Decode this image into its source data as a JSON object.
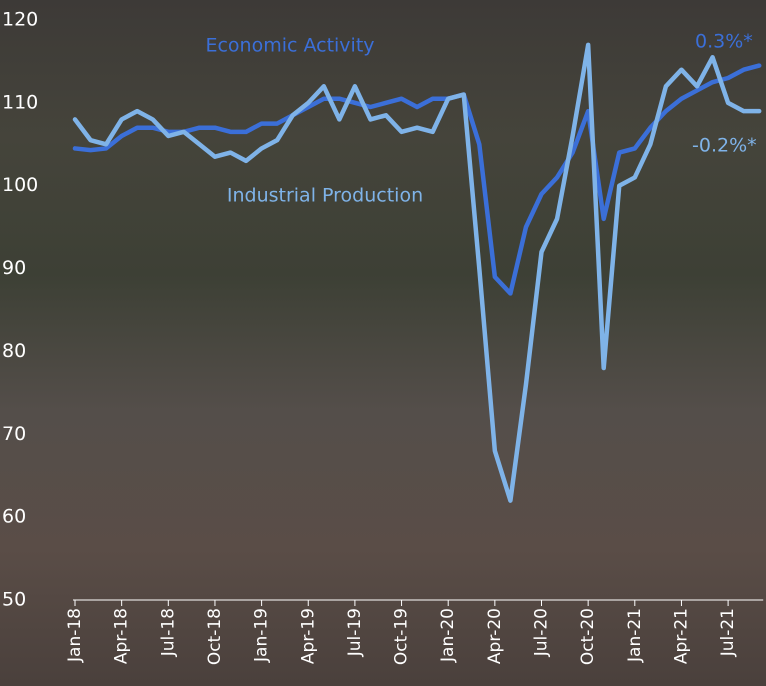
{
  "chart_data": {
    "type": "line",
    "categories": [
      "Jan-18",
      null,
      null,
      "Apr-18",
      null,
      null,
      "Jul-18",
      null,
      null,
      "Oct-18",
      null,
      null,
      "Jan-19",
      null,
      null,
      "Apr-19",
      null,
      null,
      "Jul-19",
      null,
      null,
      "Oct-19",
      null,
      null,
      "Jan-20",
      null,
      null,
      "Apr-20",
      null,
      null,
      "Jul-20",
      null,
      null,
      "Oct-20",
      null,
      null,
      "Jan-21",
      null,
      null,
      "Apr-21",
      null,
      null,
      "Jul-21",
      null,
      null
    ],
    "series": [
      {
        "name": "Economic Activity",
        "color": "#3b6fd8",
        "values": [
          104.5,
          104.3,
          104.5,
          106,
          107,
          107,
          106.5,
          106.5,
          107,
          107,
          106.5,
          106.5,
          107.5,
          107.5,
          108.5,
          109.5,
          110.5,
          110.5,
          110,
          109.5,
          110,
          110.5,
          109.5,
          110.5,
          110.5,
          111,
          105,
          89,
          87,
          95,
          99,
          101,
          104,
          109,
          96,
          104,
          104.5,
          107,
          109,
          110.5,
          111.5,
          112.5,
          113,
          114,
          114.5
        ]
      },
      {
        "name": "Industrial Production",
        "color": "#7fb3e8",
        "values": [
          108,
          105.5,
          105,
          108,
          109,
          108,
          106,
          106.5,
          105,
          103.5,
          104,
          103,
          104.5,
          105.5,
          108.5,
          110,
          112,
          108,
          112,
          108,
          108.5,
          106.5,
          107,
          106.5,
          110.5,
          111,
          90,
          68,
          62,
          76,
          92,
          96,
          106,
          117,
          78,
          100,
          101,
          105,
          112,
          114,
          112,
          115.5,
          110,
          109,
          109
        ]
      }
    ],
    "annotations": [
      "0.3%*",
      "-0.2%*"
    ],
    "ylim": [
      50,
      120
    ],
    "yticks": [
      50,
      60,
      70,
      80,
      90,
      100,
      110,
      120
    ]
  }
}
